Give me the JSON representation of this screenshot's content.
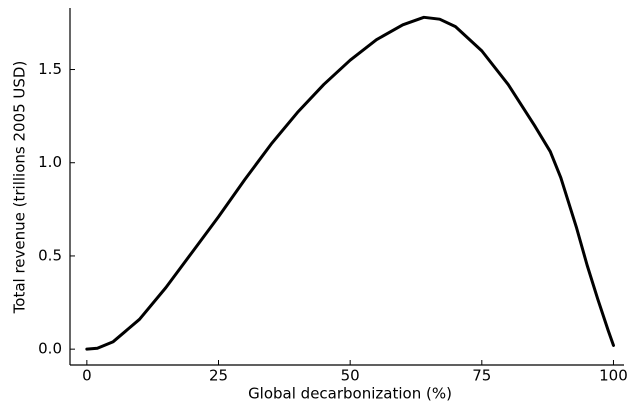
{
  "chart_data": {
    "type": "line",
    "xlabel": "Global decarbonization (%)",
    "ylabel": "Total revenue (trillions 2005 USD)",
    "x": [
      0,
      2,
      5,
      10,
      15,
      20,
      25,
      30,
      35,
      40,
      45,
      50,
      55,
      60,
      64,
      67,
      70,
      75,
      80,
      85,
      88,
      90,
      93,
      95,
      97,
      99,
      100
    ],
    "series": [
      {
        "color": "#000000",
        "values": [
          0,
          0.005,
          0.04,
          0.16,
          0.33,
          0.52,
          0.71,
          0.91,
          1.1,
          1.27,
          1.42,
          1.55,
          1.66,
          1.74,
          1.78,
          1.77,
          1.73,
          1.6,
          1.42,
          1.2,
          1.06,
          0.92,
          0.65,
          0.45,
          0.27,
          0.1,
          0.02
        ]
      }
    ],
    "xlim": [
      -3.2,
      102
    ],
    "ylim": [
      -0.085,
      1.83
    ],
    "xticks": [
      0,
      25,
      50,
      75,
      100
    ],
    "yticks": [
      {
        "value": 0,
        "label": "0.0"
      },
      {
        "value": 0.5,
        "label": "0.5"
      },
      {
        "value": 1,
        "label": "1.0"
      },
      {
        "value": 1.5,
        "label": "1.5"
      }
    ]
  }
}
